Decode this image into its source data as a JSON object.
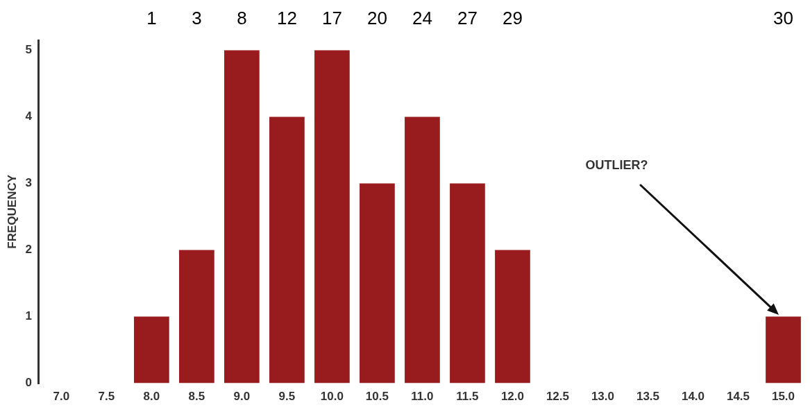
{
  "chart_data": {
    "type": "bar",
    "ylabel": "FREQUENCY",
    "categories": [
      "7.0",
      "7.5",
      "8.0",
      "8.5",
      "9.0",
      "9.5",
      "10.0",
      "10.5",
      "11.0",
      "11.5",
      "12.0",
      "12.5",
      "13.0",
      "13.5",
      "14.0",
      "14.5",
      "15.0"
    ],
    "values": [
      0,
      0,
      1,
      2,
      5,
      4,
      5,
      3,
      4,
      3,
      2,
      0,
      0,
      0,
      0,
      0,
      1
    ],
    "color": "#981b1e",
    "ylim": [
      0,
      5.15
    ],
    "yticks": [
      0,
      1,
      2,
      3,
      4,
      5
    ],
    "grid": false,
    "legend": false,
    "annotations": [
      "1",
      "3",
      "8",
      "12",
      "17",
      "20",
      "24",
      "27",
      "29",
      "30",
      "OUTLIER?"
    ]
  }
}
